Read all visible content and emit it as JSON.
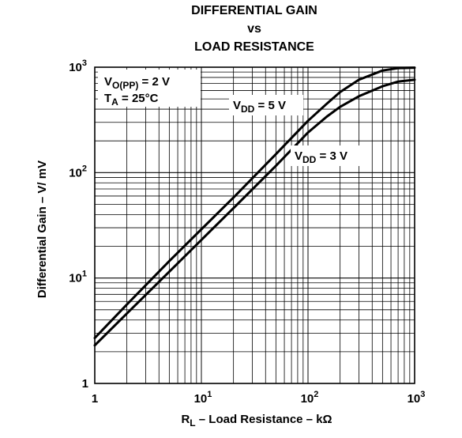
{
  "chart_data": {
    "type": "line",
    "title_lines": [
      "DIFFERENTIAL GAIN",
      "vs",
      "LOAD RESISTANCE"
    ],
    "xlabel": {
      "main": "R",
      "sub": "L",
      "rest": " – Load Resistance – kΩ"
    },
    "ylabel": "Differential Gain – V/ mV",
    "x_scale": "log",
    "y_scale": "log",
    "xlim": [
      1,
      1000
    ],
    "ylim": [
      1,
      1000
    ],
    "grid": true,
    "x_ticks": [
      {
        "value": 1,
        "base": "1",
        "exp": ""
      },
      {
        "value": 10,
        "base": "10",
        "exp": "1"
      },
      {
        "value": 100,
        "base": "10",
        "exp": "2"
      },
      {
        "value": 1000,
        "base": "10",
        "exp": "3"
      }
    ],
    "y_ticks": [
      {
        "value": 1,
        "base": "1",
        "exp": ""
      },
      {
        "value": 10,
        "base": "10",
        "exp": "1"
      },
      {
        "value": 100,
        "base": "10",
        "exp": "2"
      },
      {
        "value": 1000,
        "base": "10",
        "exp": "3"
      }
    ],
    "conditions": [
      {
        "main": "V",
        "sub": "O(PP)",
        "rest": " = 2 V"
      },
      {
        "main": "T",
        "sub": "A",
        "rest": " = 25°C"
      }
    ],
    "series": [
      {
        "name": "VDD = 5 V",
        "label": {
          "main": "V",
          "sub": "DD",
          "rest": " = 5 V"
        },
        "x": [
          1,
          2,
          5,
          10,
          20,
          50,
          100,
          150,
          200,
          300,
          500,
          700,
          1000
        ],
        "y": [
          2.7,
          5.6,
          14.5,
          29,
          58,
          150,
          310,
          450,
          580,
          760,
          930,
          980,
          990
        ]
      },
      {
        "name": "VDD = 3 V",
        "label": {
          "main": "V",
          "sub": "DD",
          "rest": " = 3 V"
        },
        "x": [
          1,
          2,
          5,
          10,
          20,
          50,
          100,
          150,
          200,
          300,
          500,
          700,
          1000
        ],
        "y": [
          2.3,
          4.6,
          11.5,
          23,
          46,
          116,
          240,
          340,
          420,
          530,
          660,
          730,
          760
        ]
      }
    ]
  }
}
